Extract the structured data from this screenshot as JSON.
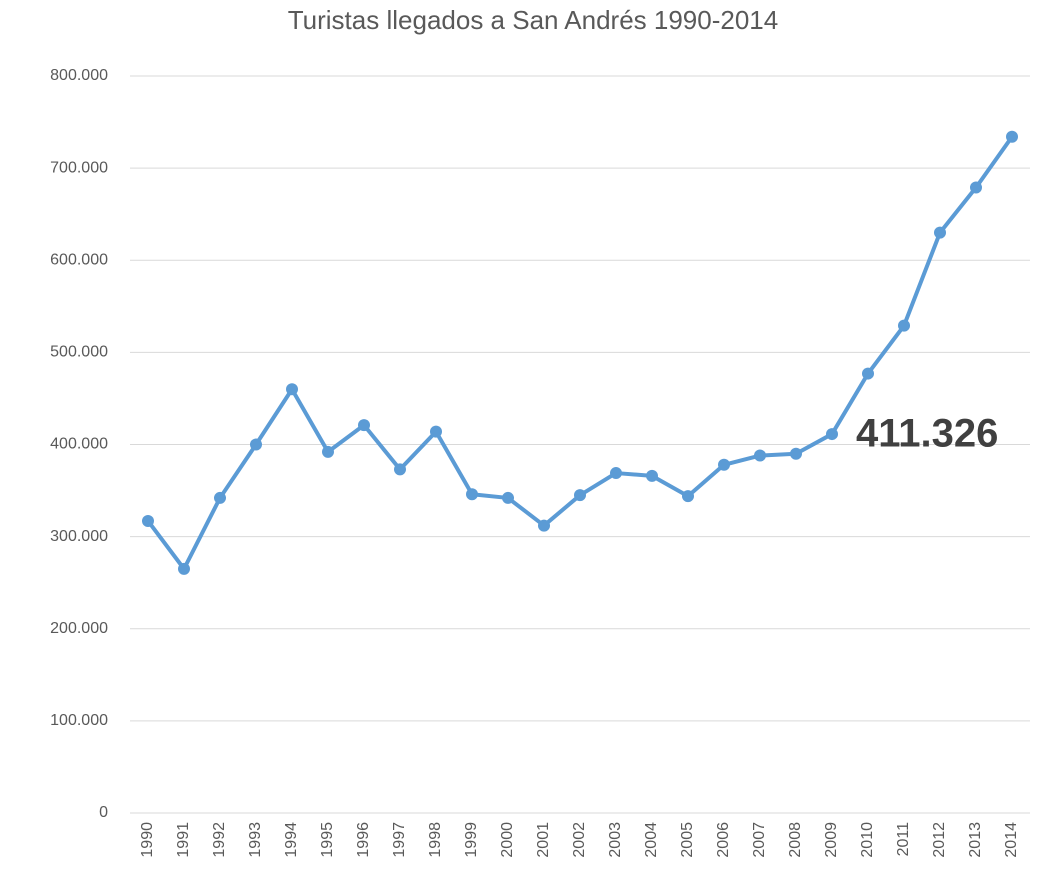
{
  "chart_data": {
    "type": "line",
    "title": "Turistas llegados a San Andrés 1990-2014",
    "categories": [
      "1990",
      "1991",
      "1992",
      "1993",
      "1994",
      "1995",
      "1996",
      "1997",
      "1998",
      "1999",
      "2000",
      "2001",
      "2002",
      "2003",
      "2004",
      "2005",
      "2006",
      "2007",
      "2008",
      "2009",
      "2010",
      "2011",
      "2012",
      "2013",
      "2014"
    ],
    "values": [
      317000,
      265000,
      342000,
      400000,
      460000,
      392000,
      421000,
      373000,
      414000,
      346000,
      342000,
      312000,
      345000,
      369000,
      366000,
      344000,
      378000,
      388000,
      390000,
      411326,
      477000,
      529000,
      630000,
      679000,
      734000
    ],
    "value_labels": [
      null,
      null,
      null,
      null,
      null,
      null,
      null,
      null,
      null,
      null,
      null,
      null,
      null,
      null,
      null,
      null,
      null,
      null,
      null,
      "411.326",
      null,
      null,
      null,
      null,
      null
    ],
    "color": "#5b9bd5",
    "ylim": [
      0,
      800000
    ],
    "yticks": [
      0,
      {
        "value": 100000,
        "label": "100.000"
      },
      {
        "value": 200000,
        "label": "200.000"
      },
      {
        "value": 300000,
        "label": "300.000"
      },
      {
        "value": 400000,
        "label": "400.000"
      },
      {
        "value": 500000,
        "label": "500.000"
      },
      {
        "value": 600000,
        "label": "600.000"
      },
      {
        "value": 700000,
        "label": "700.000"
      },
      {
        "value": 800000,
        "label": "800.000"
      }
    ],
    "grid": true
  }
}
